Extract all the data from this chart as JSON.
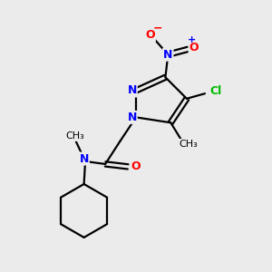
{
  "bg_color": "#ebebeb",
  "bond_color": "#000000",
  "bond_width": 1.6,
  "atom_colors": {
    "N": "#0000ff",
    "O": "#ff0000",
    "Cl": "#00bb00",
    "C": "#000000"
  }
}
